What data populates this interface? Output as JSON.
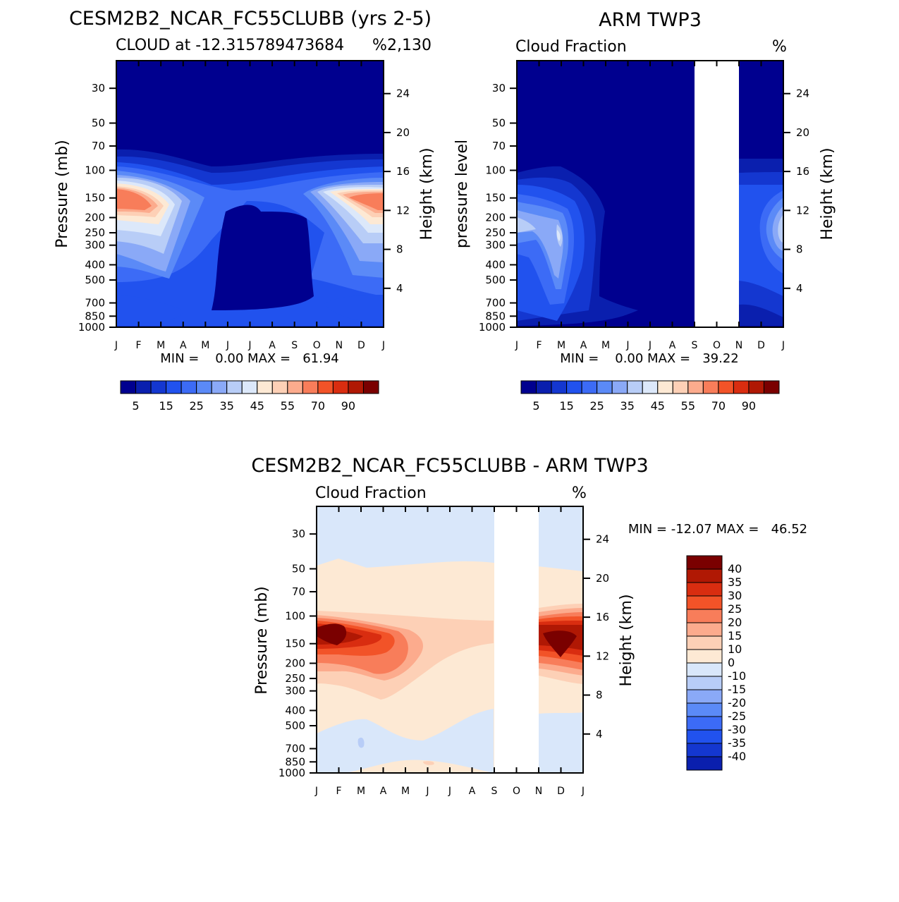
{
  "chart_data": [
    {
      "type": "heatmap",
      "title": "CESM2B2_NCAR_FC55CLUBB (yrs 2-5)",
      "subtitle": "CLOUD at -12.315789473684",
      "subtitle_right": "2,130",
      "units": "%",
      "ylabel": "Pressure (mb)",
      "ylabel_right": "Height (km)",
      "stats": "MIN =    0.00 MAX =   61.94",
      "months": [
        "J",
        "F",
        "M",
        "A",
        "M",
        "J",
        "J",
        "A",
        "S",
        "O",
        "N",
        "D",
        "J"
      ],
      "pressure_ticks": [
        "30",
        "50",
        "70",
        "100",
        "150",
        "200",
        "250",
        "300",
        "400",
        "500",
        "700",
        "850",
        "1000"
      ],
      "height_ticks": [
        "24",
        "20",
        "16",
        "12",
        "8",
        "4"
      ],
      "colorbar_labels": [
        "5",
        "15",
        "25",
        "35",
        "45",
        "55",
        "70",
        "90"
      ],
      "contour_levels": [
        5,
        10,
        15,
        20,
        25,
        30,
        35,
        40,
        45,
        50,
        55,
        60,
        70,
        80,
        90
      ],
      "fields": {
        "upper_cloud_peak_jan_200mb": 61.94,
        "upper_cloud_peak_dec_200mb": 55,
        "min": 0.0
      }
    },
    {
      "type": "heatmap",
      "title": "ARM TWP3",
      "subtitle": "Cloud Fraction",
      "units": "%",
      "ylabel": "pressure level",
      "ylabel_right": "Height (km)",
      "stats": "MIN =    0.00 MAX =   39.22",
      "months": [
        "J",
        "F",
        "M",
        "A",
        "M",
        "J",
        "J",
        "A",
        "S",
        "O",
        "N",
        "D",
        "J"
      ],
      "pressure_ticks": [
        "30",
        "50",
        "70",
        "100",
        "150",
        "200",
        "250",
        "300",
        "400",
        "500",
        "700",
        "850",
        "1000"
      ],
      "height_ticks": [
        "24",
        "20",
        "16",
        "12",
        "8",
        "4"
      ],
      "colorbar_labels": [
        "5",
        "15",
        "25",
        "35",
        "45",
        "55",
        "70",
        "90"
      ],
      "missing_months": [
        "S",
        "O"
      ],
      "fields": {
        "peak_jan_250mb": 39.22,
        "min": 0.0
      }
    },
    {
      "type": "heatmap",
      "title": "CESM2B2_NCAR_FC55CLUBB - ARM TWP3",
      "subtitle": "Cloud Fraction",
      "units": "%",
      "ylabel": "Pressure (mb)",
      "ylabel_right": "Height (km)",
      "stats": "MIN = -12.07 MAX =   46.52",
      "months": [
        "J",
        "F",
        "M",
        "A",
        "M",
        "J",
        "J",
        "A",
        "S",
        "O",
        "N",
        "D",
        "J"
      ],
      "pressure_ticks": [
        "30",
        "50",
        "70",
        "100",
        "150",
        "200",
        "250",
        "300",
        "400",
        "500",
        "700",
        "850",
        "1000"
      ],
      "height_ticks": [
        "24",
        "20",
        "16",
        "12",
        "8",
        "4"
      ],
      "colorbar_labels": [
        "40",
        "35",
        "30",
        "25",
        "20",
        "15",
        "10",
        "0",
        "-10",
        "-15",
        "-20",
        "-25",
        "-30",
        "-35",
        "-40"
      ],
      "missing_months": [
        "S",
        "O"
      ],
      "fields": {
        "peak_feb_150mb": 46.52,
        "min": -12.07
      }
    }
  ],
  "colors": {
    "seq": [
      "#00008f",
      "#0a1fae",
      "#1437d0",
      "#2152ee",
      "#3c6bf6",
      "#5b8af7",
      "#8aa9f7",
      "#b8cdf7",
      "#dce8fa",
      "#fde9d4",
      "#fdd0b6",
      "#fcab8d",
      "#f87d5a",
      "#f25328",
      "#d92d10",
      "#b01804",
      "#7a0000"
    ],
    "div": [
      "#7a0000",
      "#b01804",
      "#d92d10",
      "#f25328",
      "#f87d5a",
      "#fcab8d",
      "#fdd0b6",
      "#fde9d4",
      "#d9e7fa",
      "#b8cdf7",
      "#8aa9f7",
      "#5b8af7",
      "#3c6bf6",
      "#2152ee",
      "#1437d0",
      "#0a1fae"
    ]
  }
}
